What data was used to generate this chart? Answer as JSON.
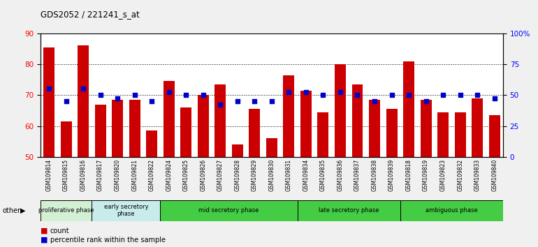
{
  "title": "GDS2052 / 221241_s_at",
  "samples": [
    "GSM109814",
    "GSM109815",
    "GSM109816",
    "GSM109817",
    "GSM109820",
    "GSM109821",
    "GSM109822",
    "GSM109824",
    "GSM109825",
    "GSM109826",
    "GSM109827",
    "GSM109828",
    "GSM109829",
    "GSM109830",
    "GSM109831",
    "GSM109834",
    "GSM109835",
    "GSM109836",
    "GSM109837",
    "GSM109838",
    "GSM109839",
    "GSM109818",
    "GSM109819",
    "GSM109823",
    "GSM109832",
    "GSM109833",
    "GSM109840"
  ],
  "bar_values": [
    85.5,
    61.5,
    86.0,
    67.0,
    68.5,
    68.5,
    58.5,
    74.5,
    66.0,
    70.0,
    73.5,
    54.0,
    65.5,
    56.0,
    76.5,
    71.5,
    64.5,
    80.0,
    73.5,
    68.5,
    65.5,
    81.0,
    68.5,
    64.5,
    64.5,
    69.0,
    63.5
  ],
  "dot_values": [
    72,
    68,
    72,
    70,
    69,
    70,
    68,
    71,
    70,
    70,
    67,
    68,
    68,
    68,
    71,
    71,
    70,
    71,
    70,
    68,
    70,
    70,
    68,
    70,
    70,
    70,
    69
  ],
  "bar_color": "#cc0000",
  "dot_color": "#0000cc",
  "ylim": [
    50,
    90
  ],
  "yticks": [
    50,
    60,
    70,
    80,
    90
  ],
  "y2lim": [
    0,
    100
  ],
  "y2ticks": [
    0,
    25,
    50,
    75,
    100
  ],
  "y2ticklabels": [
    "0",
    "25",
    "50",
    "75",
    "100%"
  ],
  "phase_configs": [
    {
      "label": "proliferative phase",
      "start": 0,
      "end": 3,
      "color": "#d4f0d4"
    },
    {
      "label": "early secretory\nphase",
      "start": 3,
      "end": 7,
      "color": "#c8ecec"
    },
    {
      "label": "mid secretory phase",
      "start": 7,
      "end": 15,
      "color": "#44cc44"
    },
    {
      "label": "late secretory phase",
      "start": 15,
      "end": 21,
      "color": "#44cc44"
    },
    {
      "label": "ambiguous phase",
      "start": 21,
      "end": 27,
      "color": "#44cc44"
    }
  ],
  "legend_count_label": "count",
  "legend_pct_label": "percentile rank within the sample",
  "other_label": "other",
  "fig_bg": "#f0f0f0",
  "plot_bg": "#ffffff"
}
